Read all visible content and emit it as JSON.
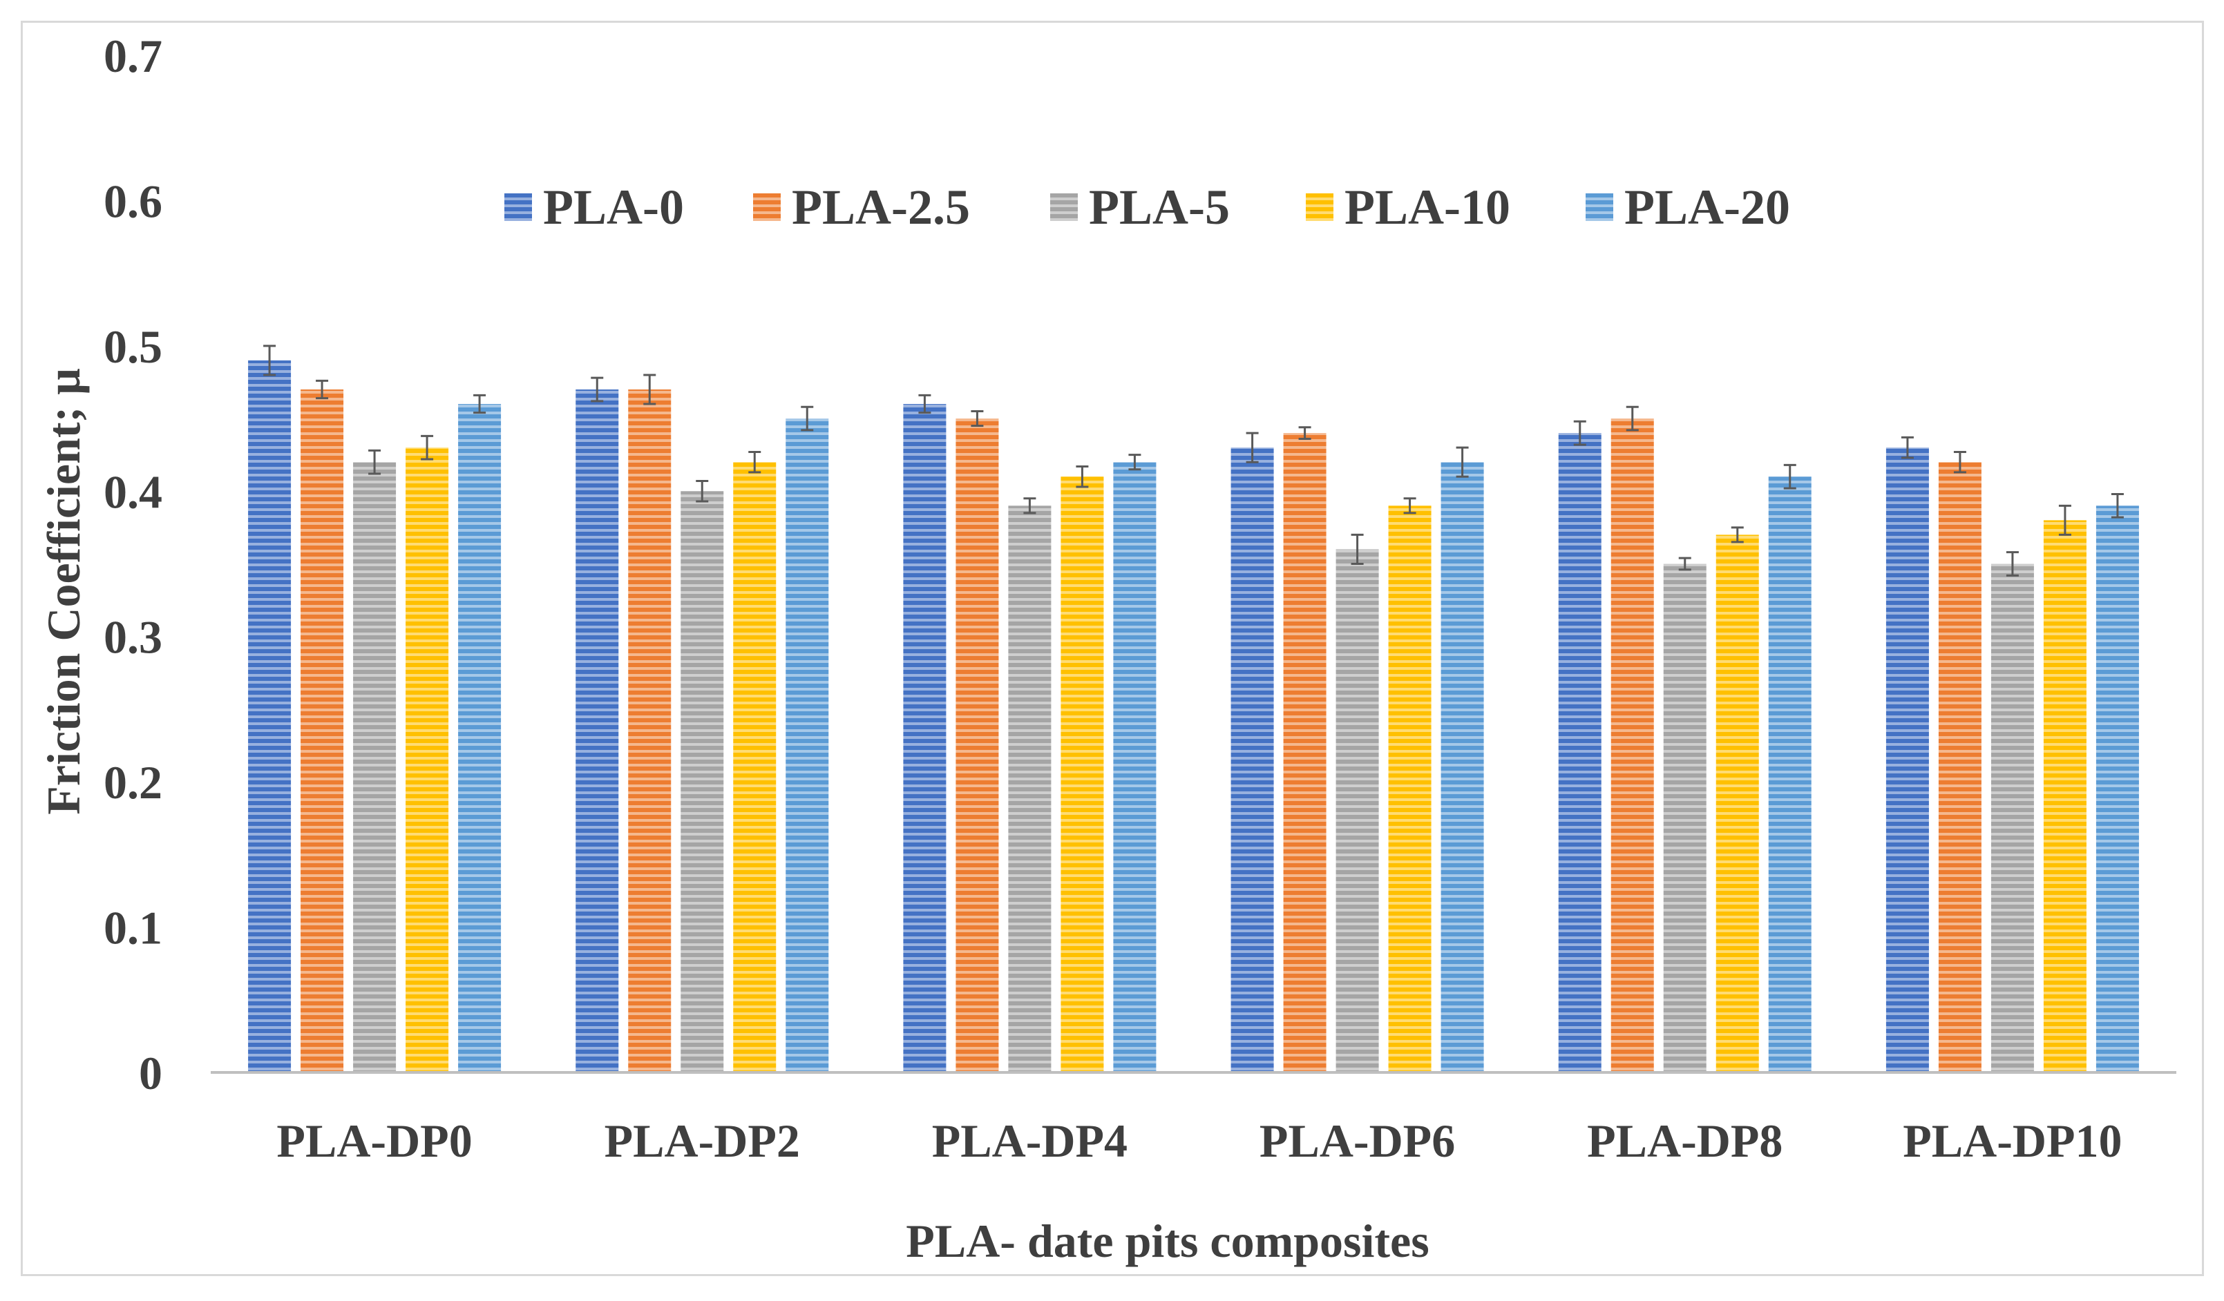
{
  "chart_data": {
    "type": "bar",
    "title": "",
    "xlabel": "PLA- date pits composites",
    "ylabel": "Friction Coefficient; μ",
    "ylim": [
      0,
      0.7
    ],
    "yticks": [
      "0",
      "0.1",
      "0.2",
      "0.3",
      "0.4",
      "0.5",
      "0.6",
      "0.7"
    ],
    "ytick_values": [
      0,
      0.1,
      0.2,
      0.3,
      0.4,
      0.5,
      0.6,
      0.7
    ],
    "grid": false,
    "legend_position": "top-center",
    "categories": [
      "PLA-DP0",
      "PLA-DP2",
      "PLA-DP4",
      "PLA-DP6",
      "PLA-DP8",
      "PLA-DP10"
    ],
    "series": [
      {
        "name": "PLA-0",
        "color": "#4472c4",
        "values": [
          0.49,
          0.47,
          0.46,
          0.43,
          0.44,
          0.43
        ],
        "errors": [
          0.01,
          0.008,
          0.006,
          0.01,
          0.008,
          0.007
        ]
      },
      {
        "name": "PLA-2.5",
        "color": "#ed7d31",
        "values": [
          0.47,
          0.47,
          0.45,
          0.44,
          0.45,
          0.42
        ],
        "errors": [
          0.006,
          0.01,
          0.005,
          0.004,
          0.008,
          0.007
        ]
      },
      {
        "name": "PLA-5",
        "color": "#a5a5a5",
        "values": [
          0.42,
          0.4,
          0.39,
          0.36,
          0.35,
          0.35
        ],
        "errors": [
          0.008,
          0.007,
          0.005,
          0.01,
          0.004,
          0.008
        ]
      },
      {
        "name": "PLA-10",
        "color": "#ffc000",
        "values": [
          0.43,
          0.42,
          0.41,
          0.39,
          0.37,
          0.38
        ],
        "errors": [
          0.008,
          0.007,
          0.007,
          0.005,
          0.005,
          0.01
        ]
      },
      {
        "name": "PLA-20",
        "color": "#5b9bd5",
        "values": [
          0.46,
          0.45,
          0.42,
          0.42,
          0.41,
          0.39
        ],
        "errors": [
          0.006,
          0.008,
          0.005,
          0.01,
          0.008,
          0.008
        ]
      }
    ]
  }
}
